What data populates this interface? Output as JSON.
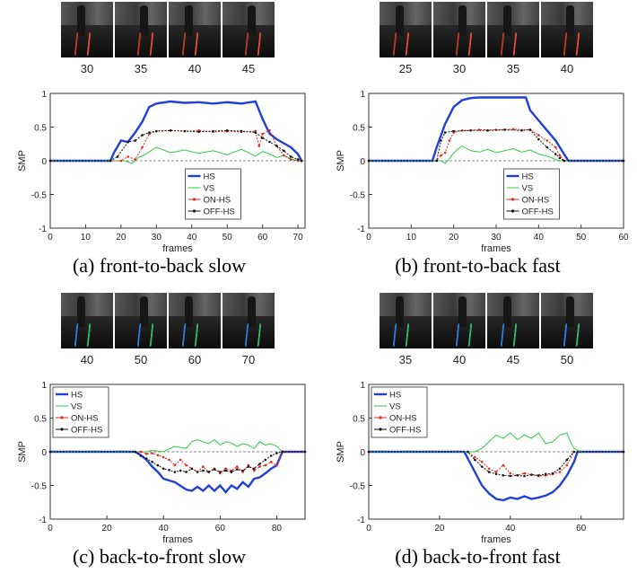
{
  "colors": {
    "HS": "#1f3fd8",
    "VS": "#2ecc40",
    "ON-HS": "#e0281e",
    "OFF-HS": "#111111"
  },
  "panels": [
    {
      "caption": "(a) front-to-back slow",
      "frame_labels": [
        "30",
        "35",
        "40",
        "45"
      ],
      "thumb_style": "red",
      "chart_data": {
        "type": "line",
        "xlabel": "frames",
        "ylabel": "SMP",
        "xlim": [
          0,
          72
        ],
        "ylim": [
          -1,
          1
        ],
        "xticks": [
          0,
          10,
          20,
          30,
          40,
          50,
          60,
          70
        ],
        "yticks": [
          -1,
          -0.5,
          0,
          0.5,
          1
        ],
        "yticklabels": [
          "-1",
          "-0.5",
          "0",
          "0.5",
          "1"
        ],
        "legend": "center-bottom",
        "series": [
          {
            "name": "HS",
            "x": [
              0,
              17,
              18,
              20,
              22,
              24,
              26,
              28,
              30,
              34,
              38,
              42,
              46,
              50,
              54,
              58,
              60,
              62,
              64,
              66,
              68,
              70,
              71
            ],
            "y": [
              0,
              0,
              0.12,
              0.3,
              0.28,
              0.42,
              0.58,
              0.8,
              0.85,
              0.88,
              0.86,
              0.87,
              0.85,
              0.87,
              0.85,
              0.88,
              0.62,
              0.4,
              0.32,
              0.26,
              0.2,
              0.1,
              0
            ]
          },
          {
            "name": "VS",
            "x": [
              0,
              21,
              23,
              25,
              27,
              30,
              34,
              38,
              42,
              46,
              50,
              54,
              58,
              60,
              62,
              64,
              66,
              68,
              70,
              71
            ],
            "y": [
              0,
              0,
              -0.04,
              0.05,
              0.1,
              0.2,
              0.12,
              0.16,
              0.11,
              0.15,
              0.09,
              0.17,
              0.07,
              0.14,
              0.1,
              0.05,
              0.08,
              0.03,
              0,
              0
            ]
          },
          {
            "name": "ON-HS",
            "x": [
              0,
              20,
              22,
              24,
              26,
              28,
              30,
              34,
              38,
              42,
              46,
              50,
              54,
              58,
              59,
              60,
              62,
              64,
              66,
              68,
              70,
              71
            ],
            "y": [
              0,
              0,
              0.06,
              0.02,
              0.2,
              0.4,
              0.44,
              0.45,
              0.44,
              0.45,
              0.43,
              0.44,
              0.43,
              0.44,
              0.22,
              0.4,
              0.45,
              0.22,
              0.08,
              0.02,
              0,
              0
            ]
          },
          {
            "name": "OFF-HS",
            "x": [
              0,
              17,
              19,
              22,
              24,
              26,
              28,
              30,
              34,
              38,
              42,
              46,
              50,
              54,
              58,
              60,
              62,
              64,
              66,
              68,
              70,
              71
            ],
            "y": [
              0,
              0,
              0.06,
              0.28,
              0.3,
              0.38,
              0.42,
              0.44,
              0.45,
              0.44,
              0.43,
              0.44,
              0.45,
              0.44,
              0.42,
              0.34,
              0.28,
              0.22,
              0.15,
              0.06,
              0.02,
              0
            ]
          }
        ]
      }
    },
    {
      "caption": "(b) front-to-back fast",
      "frame_labels": [
        "25",
        "30",
        "35",
        "40"
      ],
      "thumb_style": "red",
      "chart_data": {
        "type": "line",
        "xlabel": "frames",
        "ylabel": "SMP",
        "xlim": [
          0,
          60
        ],
        "ylim": [
          -1,
          1
        ],
        "xticks": [
          0,
          10,
          20,
          30,
          40,
          50,
          60
        ],
        "yticks": [
          -1,
          -0.5,
          0,
          0.5,
          1
        ],
        "yticklabels": [
          "-1",
          "-0.5",
          "0",
          "0.5",
          "1"
        ],
        "legend": "center-bottom",
        "series": [
          {
            "name": "HS",
            "x": [
              0,
              15,
              16,
              18,
              20,
              22,
              24,
              26,
              30,
              34,
              37,
              38,
              40,
              42,
              44,
              46,
              47,
              60
            ],
            "y": [
              0,
              0,
              0.2,
              0.55,
              0.8,
              0.9,
              0.93,
              0.94,
              0.94,
              0.94,
              0.94,
              0.75,
              0.6,
              0.45,
              0.3,
              0.1,
              0,
              0
            ]
          },
          {
            "name": "VS",
            "x": [
              0,
              17,
              18,
              19,
              20,
              22,
              24,
              26,
              28,
              30,
              32,
              34,
              36,
              38,
              40,
              42,
              44,
              45,
              60
            ],
            "y": [
              0,
              0,
              -0.04,
              0.03,
              0.12,
              0.22,
              0.15,
              0.13,
              0.17,
              0.12,
              0.15,
              0.18,
              0.13,
              0.16,
              0.1,
              0.07,
              0.02,
              0,
              0
            ]
          },
          {
            "name": "ON-HS",
            "x": [
              0,
              16,
              17,
              18,
              19,
              20,
              22,
              26,
              30,
              34,
              38,
              40,
              42,
              44,
              45,
              46,
              60
            ],
            "y": [
              0,
              0,
              0.08,
              0.12,
              0.3,
              0.42,
              0.45,
              0.46,
              0.46,
              0.47,
              0.46,
              0.38,
              0.3,
              0.2,
              0.08,
              0,
              0
            ]
          },
          {
            "name": "OFF-HS",
            "x": [
              0,
              16,
              17,
              18,
              20,
              24,
              28,
              32,
              36,
              38,
              40,
              42,
              44,
              45,
              46,
              60
            ],
            "y": [
              0,
              0,
              0.3,
              0.42,
              0.44,
              0.45,
              0.45,
              0.46,
              0.45,
              0.46,
              0.32,
              0.2,
              0.1,
              0.04,
              0,
              0
            ]
          }
        ]
      }
    },
    {
      "caption": "(c) back-to-front slow",
      "frame_labels": [
        "40",
        "50",
        "60",
        "70"
      ],
      "thumb_style": "blue",
      "chart_data": {
        "type": "line",
        "xlabel": "frames",
        "ylabel": "SMP",
        "xlim": [
          0,
          90
        ],
        "ylim": [
          -1,
          1
        ],
        "xticks": [
          0,
          20,
          40,
          60,
          80
        ],
        "yticks": [
          -1,
          -0.5,
          0,
          0.5,
          1
        ],
        "yticklabels": [
          "-1",
          "-0.5",
          "0",
          "0.5",
          "1"
        ],
        "legend": "top-left",
        "series": [
          {
            "name": "HS",
            "x": [
              0,
              30,
              32,
              34,
              36,
              38,
              40,
              44,
              48,
              50,
              52,
              54,
              56,
              58,
              60,
              62,
              64,
              66,
              68,
              70,
              72,
              74,
              76,
              78,
              80,
              82,
              90
            ],
            "y": [
              0,
              0,
              -0.05,
              -0.12,
              -0.22,
              -0.3,
              -0.4,
              -0.45,
              -0.56,
              -0.58,
              -0.52,
              -0.58,
              -0.5,
              -0.58,
              -0.5,
              -0.6,
              -0.5,
              -0.55,
              -0.45,
              -0.52,
              -0.4,
              -0.38,
              -0.32,
              -0.25,
              -0.2,
              0,
              0
            ]
          },
          {
            "name": "VS",
            "x": [
              0,
              34,
              36,
              40,
              44,
              48,
              50,
              52,
              56,
              58,
              60,
              62,
              64,
              66,
              68,
              70,
              72,
              74,
              76,
              78,
              80,
              82,
              90
            ],
            "y": [
              0,
              0,
              0.02,
              0,
              0.08,
              0.05,
              0.15,
              0.18,
              0.12,
              0.18,
              0.1,
              0.15,
              0.13,
              0.08,
              0.12,
              0.1,
              0.05,
              0.15,
              0.1,
              0.12,
              0.08,
              0,
              0
            ]
          },
          {
            "name": "ON-HS",
            "x": [
              0,
              32,
              34,
              36,
              38,
              40,
              42,
              44,
              46,
              48,
              50,
              52,
              54,
              56,
              58,
              60,
              62,
              64,
              66,
              68,
              70,
              72,
              74,
              76,
              78,
              80,
              82,
              90
            ],
            "y": [
              0,
              0,
              -0.03,
              -0.02,
              -0.05,
              -0.08,
              -0.12,
              -0.2,
              -0.12,
              -0.2,
              -0.25,
              -0.3,
              -0.22,
              -0.3,
              -0.25,
              -0.32,
              -0.25,
              -0.28,
              -0.22,
              -0.3,
              -0.2,
              -0.28,
              -0.22,
              -0.2,
              -0.15,
              -0.2,
              0,
              0
            ]
          },
          {
            "name": "OFF-HS",
            "x": [
              0,
              30,
              32,
              34,
              36,
              38,
              40,
              42,
              44,
              46,
              48,
              50,
              52,
              54,
              56,
              58,
              60,
              62,
              64,
              66,
              68,
              70,
              72,
              74,
              76,
              78,
              80,
              82,
              90
            ],
            "y": [
              0,
              0,
              -0.06,
              -0.1,
              -0.15,
              -0.2,
              -0.25,
              -0.27,
              -0.3,
              -0.28,
              -0.3,
              -0.25,
              -0.3,
              -0.28,
              -0.3,
              -0.26,
              -0.3,
              -0.28,
              -0.3,
              -0.26,
              -0.28,
              -0.22,
              -0.25,
              -0.18,
              -0.12,
              -0.06,
              -0.02,
              0,
              0
            ]
          }
        ]
      }
    },
    {
      "caption": "(d) back-to-front fast",
      "frame_labels": [
        "35",
        "40",
        "45",
        "50"
      ],
      "thumb_style": "blue",
      "chart_data": {
        "type": "line",
        "xlabel": "frames",
        "ylabel": "SMP",
        "xlim": [
          0,
          72
        ],
        "ylim": [
          -1,
          1
        ],
        "xticks": [
          0,
          20,
          40,
          60
        ],
        "yticks": [
          -1,
          -0.5,
          0,
          0.5,
          1
        ],
        "yticklabels": [
          "-1",
          "-0.5",
          "0",
          "0.5",
          "1"
        ],
        "legend": "top-left",
        "series": [
          {
            "name": "HS",
            "x": [
              0,
              27,
              28,
              30,
              32,
              34,
              36,
              38,
              40,
              42,
              44,
              46,
              48,
              50,
              52,
              54,
              56,
              58,
              59,
              72
            ],
            "y": [
              0,
              0,
              -0.1,
              -0.3,
              -0.5,
              -0.62,
              -0.7,
              -0.72,
              -0.68,
              -0.7,
              -0.66,
              -0.7,
              -0.68,
              -0.65,
              -0.6,
              -0.5,
              -0.35,
              -0.15,
              0,
              0
            ]
          },
          {
            "name": "VS",
            "x": [
              0,
              30,
              32,
              34,
              36,
              38,
              40,
              42,
              44,
              46,
              48,
              50,
              52,
              54,
              56,
              57,
              58,
              60,
              72
            ],
            "y": [
              0,
              0,
              0.05,
              0.15,
              0.25,
              0.2,
              0.28,
              0.18,
              0.25,
              0.2,
              0.28,
              0.12,
              0.15,
              0.25,
              0.28,
              0.15,
              0.05,
              0,
              0
            ]
          },
          {
            "name": "ON-HS",
            "x": [
              0,
              28,
              30,
              32,
              34,
              36,
              38,
              40,
              42,
              44,
              46,
              48,
              50,
              52,
              54,
              56,
              58,
              72
            ],
            "y": [
              0,
              0,
              -0.08,
              -0.15,
              -0.25,
              -0.3,
              -0.2,
              -0.32,
              -0.35,
              -0.32,
              -0.34,
              -0.36,
              -0.35,
              -0.33,
              -0.3,
              -0.2,
              0,
              0
            ]
          },
          {
            "name": "OFF-HS",
            "x": [
              0,
              28,
              30,
              32,
              34,
              36,
              38,
              40,
              42,
              44,
              46,
              48,
              50,
              52,
              54,
              56,
              58,
              72
            ],
            "y": [
              0,
              0,
              -0.12,
              -0.22,
              -0.3,
              -0.33,
              -0.35,
              -0.36,
              -0.35,
              -0.36,
              -0.34,
              -0.35,
              -0.33,
              -0.32,
              -0.25,
              -0.12,
              0,
              0
            ]
          }
        ]
      }
    }
  ]
}
